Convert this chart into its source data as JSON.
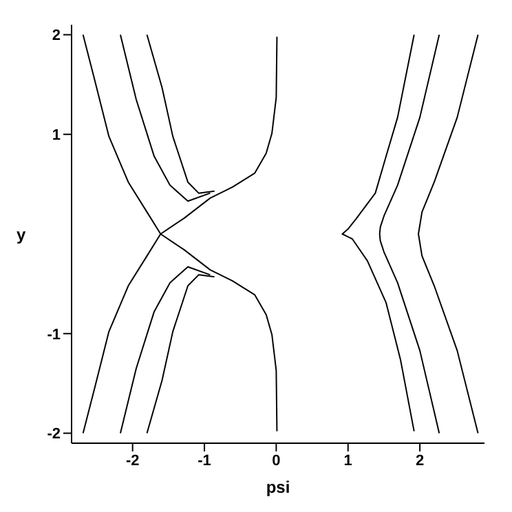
{
  "chart_data": {
    "type": "line",
    "xlabel": "psi",
    "ylabel": "y",
    "xlim": [
      -2.85,
      2.9
    ],
    "ylim": [
      -2.1,
      2.1
    ],
    "xticks": [
      -2,
      -1,
      0,
      1,
      2
    ],
    "yticks": [
      -2,
      -1,
      1,
      2
    ],
    "grid": false,
    "line_style": "solid",
    "series": [
      {
        "color": "#000000",
        "x": [
          -2.69,
          -2.53,
          -2.33,
          -2.06,
          -1.8,
          -1.61,
          -1.28,
          -0.92,
          -0.61,
          -0.3,
          -0.14,
          -0.06,
          0,
          0.01
        ],
        "values": [
          2.0,
          1.55,
          0.98,
          0.52,
          0.22,
          0,
          -0.16,
          -0.36,
          -0.47,
          -0.61,
          -0.81,
          -1.01,
          -1.37,
          -1.98
        ]
      },
      {
        "color": "#000000",
        "x": [
          -2.69,
          -2.53,
          -2.33,
          -2.06,
          -1.8,
          -1.61,
          -1.28,
          -0.92,
          -0.61,
          -0.3,
          -0.14,
          -0.06,
          0,
          0.01
        ],
        "values": [
          -2.0,
          -1.55,
          -0.98,
          -0.52,
          -0.22,
          0,
          0.16,
          0.36,
          0.47,
          0.61,
          0.81,
          1.01,
          1.37,
          1.98
        ]
      },
      {
        "color": "#000000",
        "x": [
          -2.17,
          -1.95,
          -1.7,
          -1.48,
          -1.23,
          -0.92
        ],
        "values": [
          2.0,
          1.35,
          0.78,
          0.49,
          0.33,
          0.41
        ]
      },
      {
        "color": "#000000",
        "x": [
          -2.17,
          -1.95,
          -1.7,
          -1.48,
          -1.23,
          -0.92
        ],
        "values": [
          -2.0,
          -1.35,
          -0.78,
          -0.49,
          -0.33,
          -0.41
        ]
      },
      {
        "color": "#000000",
        "x": [
          -1.8,
          -1.59,
          -1.44,
          -1.23,
          -1.08,
          -0.86
        ],
        "values": [
          2.0,
          1.47,
          0.98,
          0.52,
          0.41,
          0.43
        ]
      },
      {
        "color": "#000000",
        "x": [
          -1.8,
          -1.59,
          -1.44,
          -1.23,
          -1.08,
          -0.86
        ],
        "values": [
          -2.0,
          -1.47,
          -0.98,
          -0.52,
          -0.41,
          -0.43
        ]
      },
      {
        "color": "#000000",
        "x": [
          1.92,
          1.69,
          1.53,
          1.38,
          1.11,
          1.0,
          0.92,
          1.06,
          1.27,
          1.53,
          1.73,
          1.92
        ],
        "values": [
          2.0,
          1.17,
          0.78,
          0.41,
          0.15,
          0.05,
          0,
          -0.05,
          -0.27,
          -0.69,
          -1.26,
          -1.98
        ]
      },
      {
        "color": "#000000",
        "x": [
          2.27,
          2.0,
          1.69,
          1.5,
          1.45,
          1.44,
          1.45,
          1.5,
          1.69,
          2.0,
          2.27
        ],
        "values": [
          2.0,
          1.17,
          0.49,
          0.18,
          0.07,
          0,
          -0.07,
          -0.18,
          -0.49,
          -1.17,
          -2.0
        ]
      },
      {
        "color": "#000000",
        "x": [
          2.81,
          2.52,
          2.2,
          2.03,
          1.98,
          2.03,
          2.2,
          2.52,
          2.81
        ],
        "values": [
          2.0,
          1.17,
          0.52,
          0.22,
          0,
          -0.22,
          -0.52,
          -1.17,
          -2.0
        ]
      }
    ]
  }
}
